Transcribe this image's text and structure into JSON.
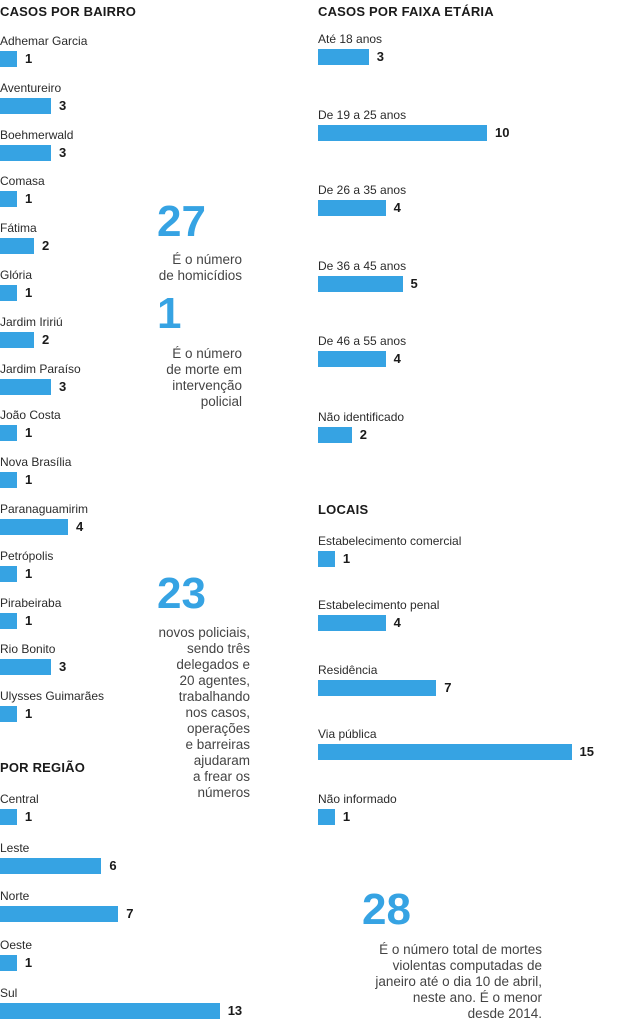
{
  "chart_data": [
    {
      "type": "bar",
      "title": "CASOS POR BAIRRO",
      "categories": [
        "Adhemar Garcia",
        "Aventureiro",
        "Boehmerwald",
        "Comasa",
        "Fátima",
        "Glória",
        "Jardim Iririú",
        "Jardim Paraíso",
        "João Costa",
        "Nova Brasília",
        "Paranaguamirim",
        "Petrópolis",
        "Pirabeiraba",
        "Rio Bonito",
        "Ulysses Guimarães"
      ],
      "values": [
        1,
        3,
        3,
        1,
        2,
        1,
        2,
        3,
        1,
        1,
        4,
        1,
        1,
        3,
        1
      ]
    },
    {
      "type": "bar",
      "title": "POR REGIÃO",
      "categories": [
        "Central",
        "Leste",
        "Norte",
        "Oeste",
        "Sul"
      ],
      "values": [
        1,
        6,
        7,
        1,
        13
      ]
    },
    {
      "type": "bar",
      "title": "CASOS POR FAIXA ETÁRIA",
      "categories": [
        "Até 18 anos",
        "De 19 a 25 anos",
        "De 26 a 35 anos",
        "De 36 a 45 anos",
        "De 46 a 55 anos",
        "Não identificado"
      ],
      "values": [
        3,
        10,
        4,
        5,
        4,
        2
      ]
    },
    {
      "type": "bar",
      "title": "LOCAIS",
      "categories": [
        "Estabelecimento comercial",
        "Estabelecimento penal",
        "Residência",
        "Via pública",
        "Não informado"
      ],
      "values": [
        1,
        4,
        7,
        15,
        1
      ]
    }
  ],
  "highlights": [
    {
      "number": "27",
      "text": "É o número\nde homicídios"
    },
    {
      "number": "1",
      "text": "É o número\nde morte em\nintervenção\npolicial"
    },
    {
      "number": "23",
      "text": "novos policiais,\nsendo três\ndelegados e\n20 agentes,\ntrabalhando\nnos casos,\noperações\ne barreiras\najudaram\na frear os\nnúmeros"
    },
    {
      "number": "28",
      "text": "É o número total de mortes\nviolentas computadas de\njaneiro até o dia 10 de abril,\nneste ano. É o menor\ndesde 2014."
    }
  ],
  "colors": {
    "bar": "#36a3e3",
    "accent": "#36a3e3"
  }
}
